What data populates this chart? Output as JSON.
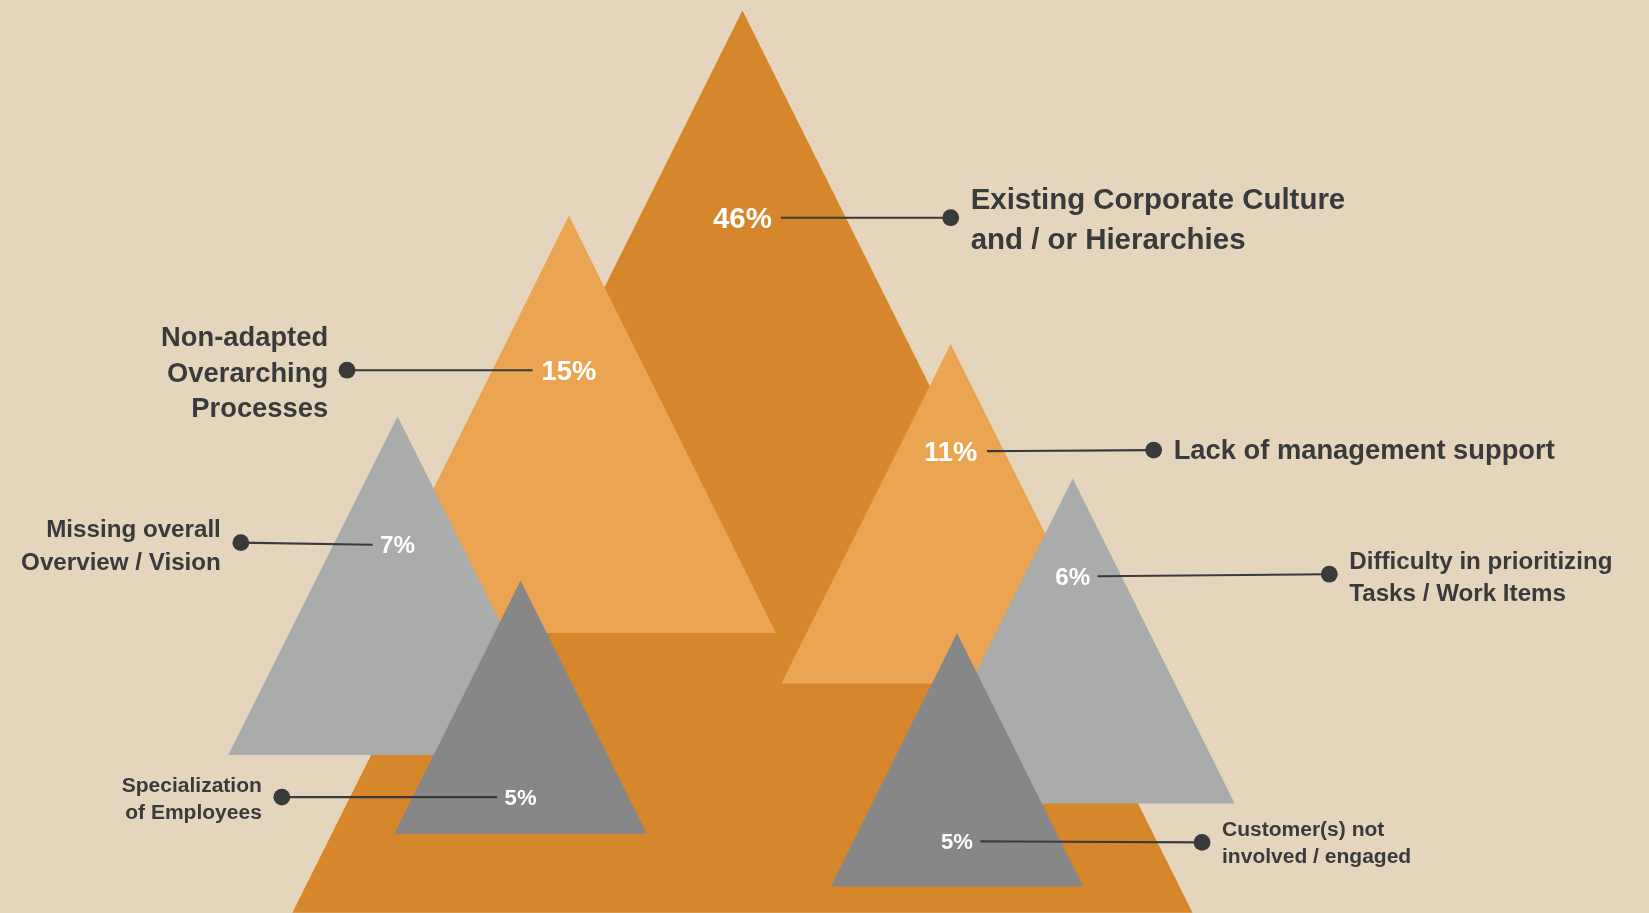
{
  "chart_data": {
    "type": "other",
    "categories": [
      "Existing Corporate Culture and / or Hierarchies",
      "Non-adapted Overarching Processes",
      "Lack of management support",
      "Missing overall Overview / Vision",
      "Difficulty in prioritizing Tasks / Work Items",
      "Specialization of Employees",
      "Customer(s) not involved / engaged"
    ],
    "values": [
      46,
      15,
      11,
      7,
      6,
      5,
      5
    ],
    "value_labels": [
      "46%",
      "15%",
      "11%",
      "7%",
      "6%",
      "5%",
      "5%"
    ],
    "colors": [
      "#d6862b",
      "#eba552",
      "#eba552",
      "#a9acaa",
      "#a9acaa",
      "#868786",
      "#868786"
    ]
  }
}
